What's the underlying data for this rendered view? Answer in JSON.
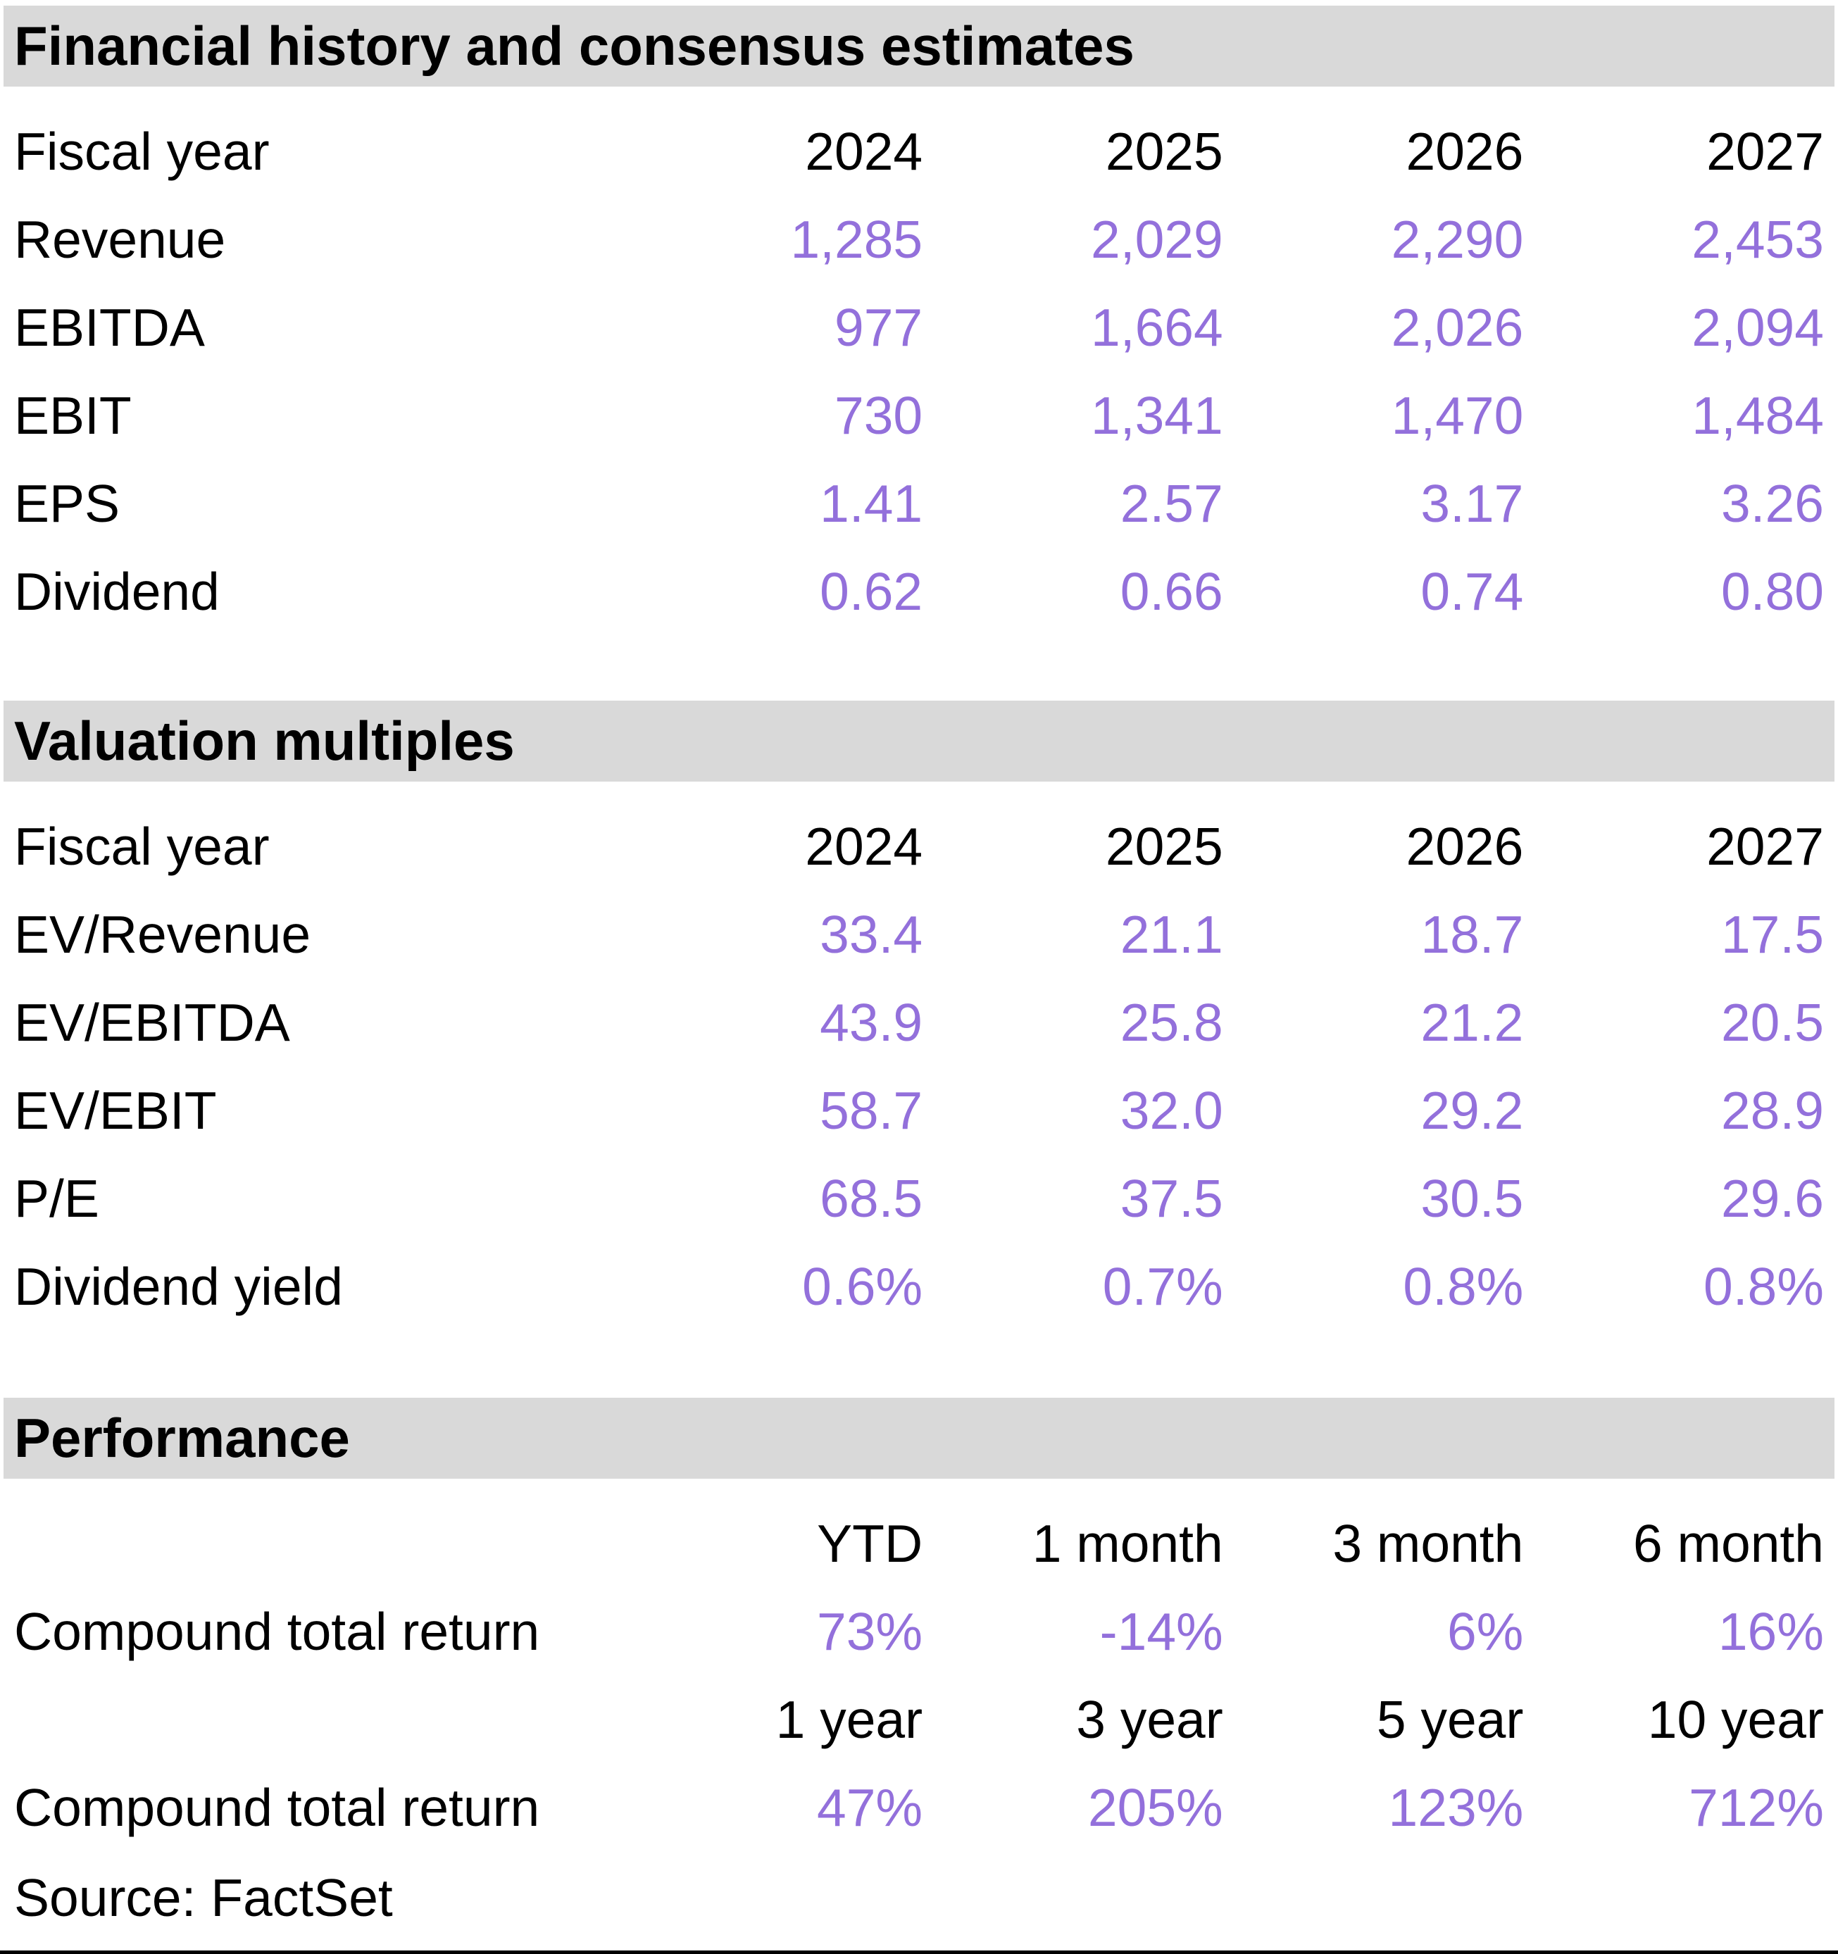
{
  "colors": {
    "accent_purple": "#9370DB",
    "section_header_bg": "#D9D9D9",
    "text": "#000000"
  },
  "sections": {
    "financial": {
      "title": "Financial history and consensus estimates",
      "fiscal_label": "Fiscal year",
      "years": [
        "2024",
        "2025",
        "2026",
        "2027"
      ],
      "rows": [
        {
          "label": "Revenue",
          "values": [
            "1,285",
            "2,029",
            "2,290",
            "2,453"
          ]
        },
        {
          "label": "EBITDA",
          "values": [
            "977",
            "1,664",
            "2,026",
            "2,094"
          ]
        },
        {
          "label": "EBIT",
          "values": [
            "730",
            "1,341",
            "1,470",
            "1,484"
          ]
        },
        {
          "label": "EPS",
          "values": [
            "1.41",
            "2.57",
            "3.17",
            "3.26"
          ]
        },
        {
          "label": "Dividend",
          "values": [
            "0.62",
            "0.66",
            "0.74",
            "0.80"
          ]
        }
      ]
    },
    "valuation": {
      "title": "Valuation multiples",
      "fiscal_label": "Fiscal year",
      "years": [
        "2024",
        "2025",
        "2026",
        "2027"
      ],
      "rows": [
        {
          "label": "EV/Revenue",
          "values": [
            "33.4",
            "21.1",
            "18.7",
            "17.5"
          ]
        },
        {
          "label": "EV/EBITDA",
          "values": [
            "43.9",
            "25.8",
            "21.2",
            "20.5"
          ]
        },
        {
          "label": "EV/EBIT",
          "values": [
            "58.7",
            "32.0",
            "29.2",
            "28.9"
          ]
        },
        {
          "label": "P/E",
          "values": [
            "68.5",
            "37.5",
            "30.5",
            "29.6"
          ]
        },
        {
          "label": "Dividend yield",
          "values": [
            "0.6%",
            "0.7%",
            "0.8%",
            "0.8%"
          ]
        }
      ]
    },
    "performance": {
      "title": "Performance",
      "groups": [
        {
          "periods": [
            "YTD",
            "1 month",
            "3 month",
            "6 month"
          ],
          "row_label": "Compound total return",
          "values": [
            "73%",
            "-14%",
            "6%",
            "16%"
          ]
        },
        {
          "periods": [
            "1 year",
            "3 year",
            "5 year",
            "10 year"
          ],
          "row_label": "Compound total return",
          "values": [
            "47%",
            "205%",
            "123%",
            "712%"
          ]
        }
      ]
    }
  },
  "source": "Source: FactSet"
}
